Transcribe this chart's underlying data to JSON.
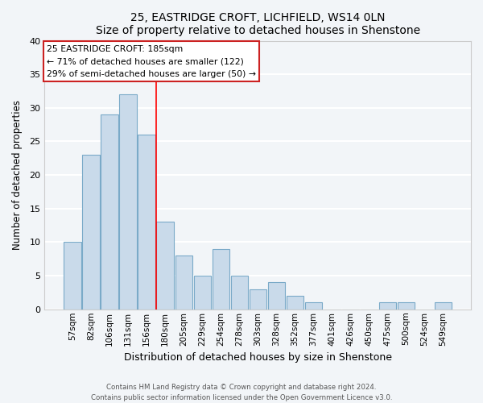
{
  "title": "25, EASTRIDGE CROFT, LICHFIELD, WS14 0LN",
  "subtitle": "Size of property relative to detached houses in Shenstone",
  "xlabel": "Distribution of detached houses by size in Shenstone",
  "ylabel": "Number of detached properties",
  "bar_labels": [
    "57sqm",
    "82sqm",
    "106sqm",
    "131sqm",
    "156sqm",
    "180sqm",
    "205sqm",
    "229sqm",
    "254sqm",
    "278sqm",
    "303sqm",
    "328sqm",
    "352sqm",
    "377sqm",
    "401sqm",
    "426sqm",
    "450sqm",
    "475sqm",
    "500sqm",
    "524sqm",
    "549sqm"
  ],
  "bar_values": [
    10,
    23,
    29,
    32,
    26,
    13,
    8,
    5,
    9,
    5,
    3,
    4,
    2,
    1,
    0,
    0,
    0,
    1,
    1,
    0,
    1
  ],
  "bar_color": "#c9daea",
  "bar_edge_color": "#7aaac8",
  "ylim": [
    0,
    40
  ],
  "yticks": [
    0,
    5,
    10,
    15,
    20,
    25,
    30,
    35,
    40
  ],
  "annotation_line1": "25 EASTRIDGE CROFT: 185sqm",
  "annotation_line2": "← 71% of detached houses are smaller (122)",
  "annotation_line3": "29% of semi-detached houses are larger (50) →",
  "footer_line1": "Contains HM Land Registry data © Crown copyright and database right 2024.",
  "footer_line2": "Contains public sector information licensed under the Open Government Licence v3.0.",
  "background_color": "#f2f5f8",
  "plot_background": "#f2f5f8",
  "grid_color": "#ffffff",
  "spine_color": "#cccccc"
}
